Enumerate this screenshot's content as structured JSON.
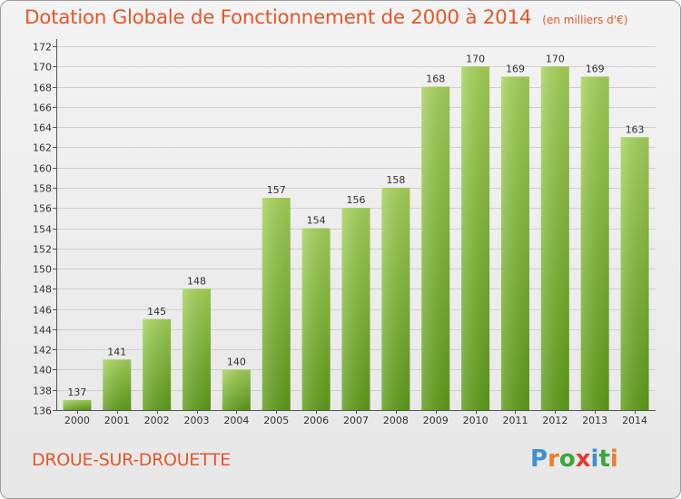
{
  "header": {
    "title": "Dotation Globale de Fonctionnement de 2000 à 2014",
    "units": "(en milliers d'€)"
  },
  "footer": {
    "commune": "DROUE-SUR-DROUETTE",
    "brand": "Proxiti",
    "brand_letters": [
      "P",
      "r",
      "o",
      "x",
      "i",
      "t",
      "i"
    ]
  },
  "colors": {
    "title": "#e0592a",
    "bar_top": "#a6d45a",
    "bar_bottom": "#5f9e1a",
    "grid": "#cfcfcf",
    "axis": "#555555",
    "brand_letters": [
      "#3d8fd6",
      "#e8812b",
      "#3aa640",
      "#e03b30",
      "#3d8fd6",
      "#3aa640",
      "#e8812b"
    ]
  },
  "chart_data": {
    "type": "bar",
    "title": "Dotation Globale de Fonctionnement de 2000 à 2014",
    "subtitle": "(en milliers d'€)",
    "xlabel": "",
    "ylabel": "",
    "categories": [
      "2000",
      "2001",
      "2002",
      "2003",
      "2004",
      "2005",
      "2006",
      "2007",
      "2008",
      "2009",
      "2010",
      "2011",
      "2012",
      "2013",
      "2014"
    ],
    "values": [
      137,
      141,
      145,
      148,
      140,
      157,
      154,
      156,
      158,
      168,
      170,
      169,
      170,
      169,
      163
    ],
    "ylim": [
      136,
      172
    ],
    "yticks": [
      136,
      138,
      140,
      142,
      144,
      146,
      148,
      150,
      152,
      154,
      156,
      158,
      160,
      162,
      164,
      166,
      168,
      170,
      172
    ],
    "grid": true,
    "legend": "none"
  }
}
